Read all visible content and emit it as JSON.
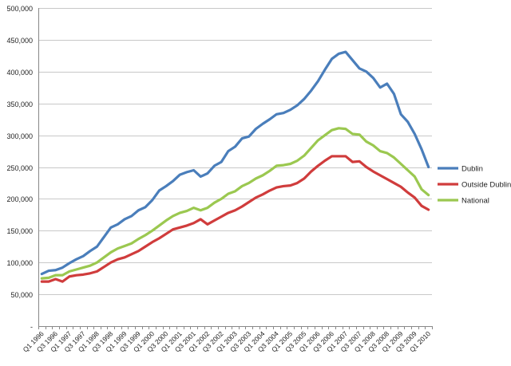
{
  "chart_data": {
    "type": "line",
    "title": "",
    "xlabel": "",
    "ylabel": "",
    "ylim": [
      0,
      500000
    ],
    "yticks": [
      0,
      50000,
      100000,
      150000,
      200000,
      250000,
      300000,
      350000,
      400000,
      450000,
      500000
    ],
    "ytick_labels": [
      "-",
      "50,000",
      "100,000",
      "150,000",
      "200,000",
      "250,000",
      "300,000",
      "350,000",
      "400,000",
      "450,000",
      "500,000"
    ],
    "grid": "horizontal",
    "legend_position": "right",
    "x": [
      "Q1 1996",
      "Q2 1996",
      "Q3 1996",
      "Q4 1996",
      "Q1 1997",
      "Q2 1997",
      "Q3 1997",
      "Q4 1997",
      "Q1 1998",
      "Q2 1998",
      "Q3 1998",
      "Q4 1998",
      "Q1 1999",
      "Q2 1999",
      "Q3 1999",
      "Q4 1999",
      "Q1 2000",
      "Q2 2000",
      "Q3 2000",
      "Q4 2000",
      "Q1 2001",
      "Q2 2001",
      "Q3 2001",
      "Q4 2001",
      "Q1 2002",
      "Q2 2002",
      "Q3 2002",
      "Q4 2002",
      "Q1 2003",
      "Q2 2003",
      "Q3 2003",
      "Q4 2003",
      "Q1 2004",
      "Q2 2004",
      "Q3 2004",
      "Q4 2004",
      "Q1 2005",
      "Q2 2005",
      "Q3 2005",
      "Q4 2005",
      "Q1 2006",
      "Q2 2006",
      "Q3 2006",
      "Q4 2006",
      "Q1 2007",
      "Q2 2007",
      "Q3 2007",
      "Q4 2007",
      "Q1 2008",
      "Q2 2008",
      "Q3 2008",
      "Q4 2008",
      "Q1 2009",
      "Q2 2009",
      "Q3 2009",
      "Q4 2009",
      "Q1 2010"
    ],
    "x_tick_labels": [
      "Q1 1996",
      "Q3 1996",
      "Q1 1997",
      "Q3 1997",
      "Q1 1998",
      "Q3 1998",
      "Q1 1999",
      "Q3 1999",
      "Q1 2000",
      "Q3 2000",
      "Q1 2001",
      "Q3 2001",
      "Q1 2002",
      "Q3 2002",
      "Q1 2003",
      "Q3 2003",
      "Q1 2004",
      "Q3 2004",
      "Q1 2005",
      "Q3 2005",
      "Q1 2006",
      "Q3 2006",
      "Q1 2007",
      "Q3 2007",
      "Q1 2008",
      "Q3 2008",
      "Q1 2009",
      "Q3 2009",
      "Q1 2010"
    ],
    "series": [
      {
        "name": "Dublin",
        "color": "#4a7ebb",
        "values": [
          82000,
          87000,
          88000,
          92000,
          99000,
          105000,
          110000,
          118000,
          125000,
          140000,
          155000,
          160000,
          168000,
          173000,
          182000,
          187000,
          198000,
          213000,
          220000,
          228000,
          238000,
          242000,
          245000,
          235000,
          240000,
          252000,
          258000,
          275000,
          282000,
          295000,
          298000,
          310000,
          318000,
          325000,
          333000,
          335000,
          340000,
          347000,
          357000,
          370000,
          385000,
          403000,
          420000,
          428000,
          431000,
          418000,
          405000,
          400000,
          390000,
          375000,
          381000,
          365000,
          333000,
          321000,
          302000,
          278000,
          250000
        ]
      },
      {
        "name": "Outside Dublin",
        "color": "#d03c3c",
        "values": [
          70000,
          70000,
          74000,
          70000,
          78000,
          80000,
          81000,
          83000,
          86000,
          93000,
          100000,
          105000,
          108000,
          113000,
          118000,
          125000,
          132000,
          138000,
          145000,
          152000,
          155000,
          158000,
          162000,
          168000,
          160000,
          166000,
          172000,
          178000,
          182000,
          188000,
          195000,
          202000,
          207000,
          213000,
          218000,
          220000,
          221000,
          225000,
          232000,
          243000,
          252000,
          260000,
          267000,
          267000,
          267000,
          258000,
          259000,
          250000,
          243000,
          237000,
          231000,
          225000,
          219000,
          210000,
          202000,
          189000,
          183000
        ]
      },
      {
        "name": "National",
        "color": "#9bc850",
        "values": [
          75000,
          76000,
          80000,
          80000,
          86000,
          89000,
          92000,
          95000,
          100000,
          108000,
          116000,
          122000,
          126000,
          130000,
          137000,
          143000,
          150000,
          158000,
          166000,
          173000,
          178000,
          181000,
          186000,
          182000,
          186000,
          194000,
          200000,
          208000,
          212000,
          220000,
          225000,
          232000,
          237000,
          244000,
          252000,
          253000,
          255000,
          260000,
          268000,
          280000,
          292000,
          300000,
          308000,
          311000,
          310000,
          302000,
          301000,
          290000,
          284000,
          275000,
          272000,
          265000,
          255000,
          245000,
          235000,
          215000,
          206000
        ]
      }
    ]
  }
}
